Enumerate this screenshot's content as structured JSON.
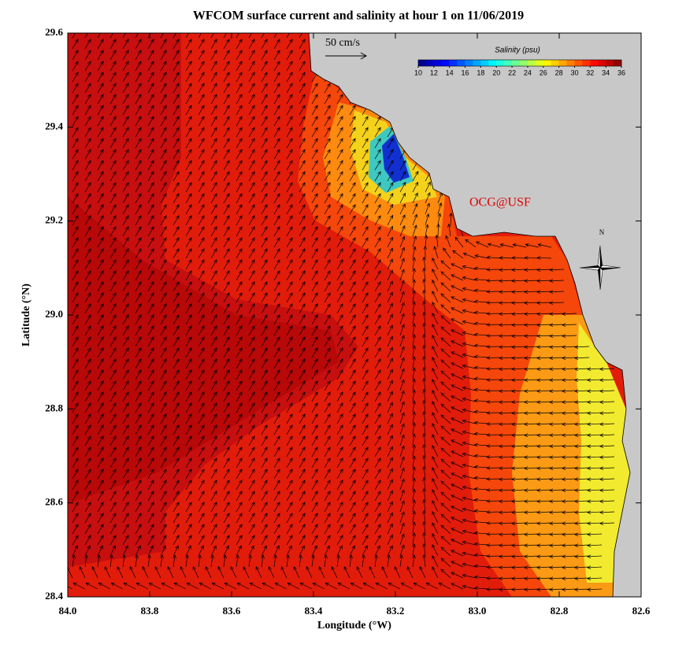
{
  "map": {
    "title": "WFCOM surface current and salinity at hour 1 on 11/06/2019",
    "xlabel": "Longitude (°W)",
    "ylabel": "Latitude (°N)",
    "xlim": [
      84.0,
      82.6
    ],
    "ylim": [
      28.4,
      29.6
    ],
    "xticks": [
      {
        "value": 84.0,
        "label": "84.0"
      },
      {
        "value": 83.8,
        "label": "83.8"
      },
      {
        "value": 83.6,
        "label": "83.6"
      },
      {
        "value": 83.4,
        "label": "83.4"
      },
      {
        "value": 83.2,
        "label": "83.2"
      },
      {
        "value": 83.0,
        "label": "83.0"
      },
      {
        "value": 82.8,
        "label": "82.8"
      },
      {
        "value": 82.6,
        "label": "82.6"
      }
    ],
    "yticks": [
      {
        "value": 28.4,
        "label": "28.4"
      },
      {
        "value": 28.6,
        "label": "28.6"
      },
      {
        "value": 28.8,
        "label": "28.8"
      },
      {
        "value": 29.0,
        "label": "29.0"
      },
      {
        "value": 29.2,
        "label": "29.2"
      },
      {
        "value": 29.4,
        "label": "29.4"
      },
      {
        "value": 29.6,
        "label": "29.6"
      }
    ],
    "colorbar": {
      "title": "Salinity (psu)",
      "lim": [
        10,
        36
      ],
      "ticks": [
        10,
        12,
        14,
        16,
        18,
        20,
        22,
        24,
        26,
        28,
        30,
        32,
        34,
        36
      ]
    },
    "scale_label": "50 cm/s",
    "credit": "OCG@USF",
    "north": "N"
  }
}
